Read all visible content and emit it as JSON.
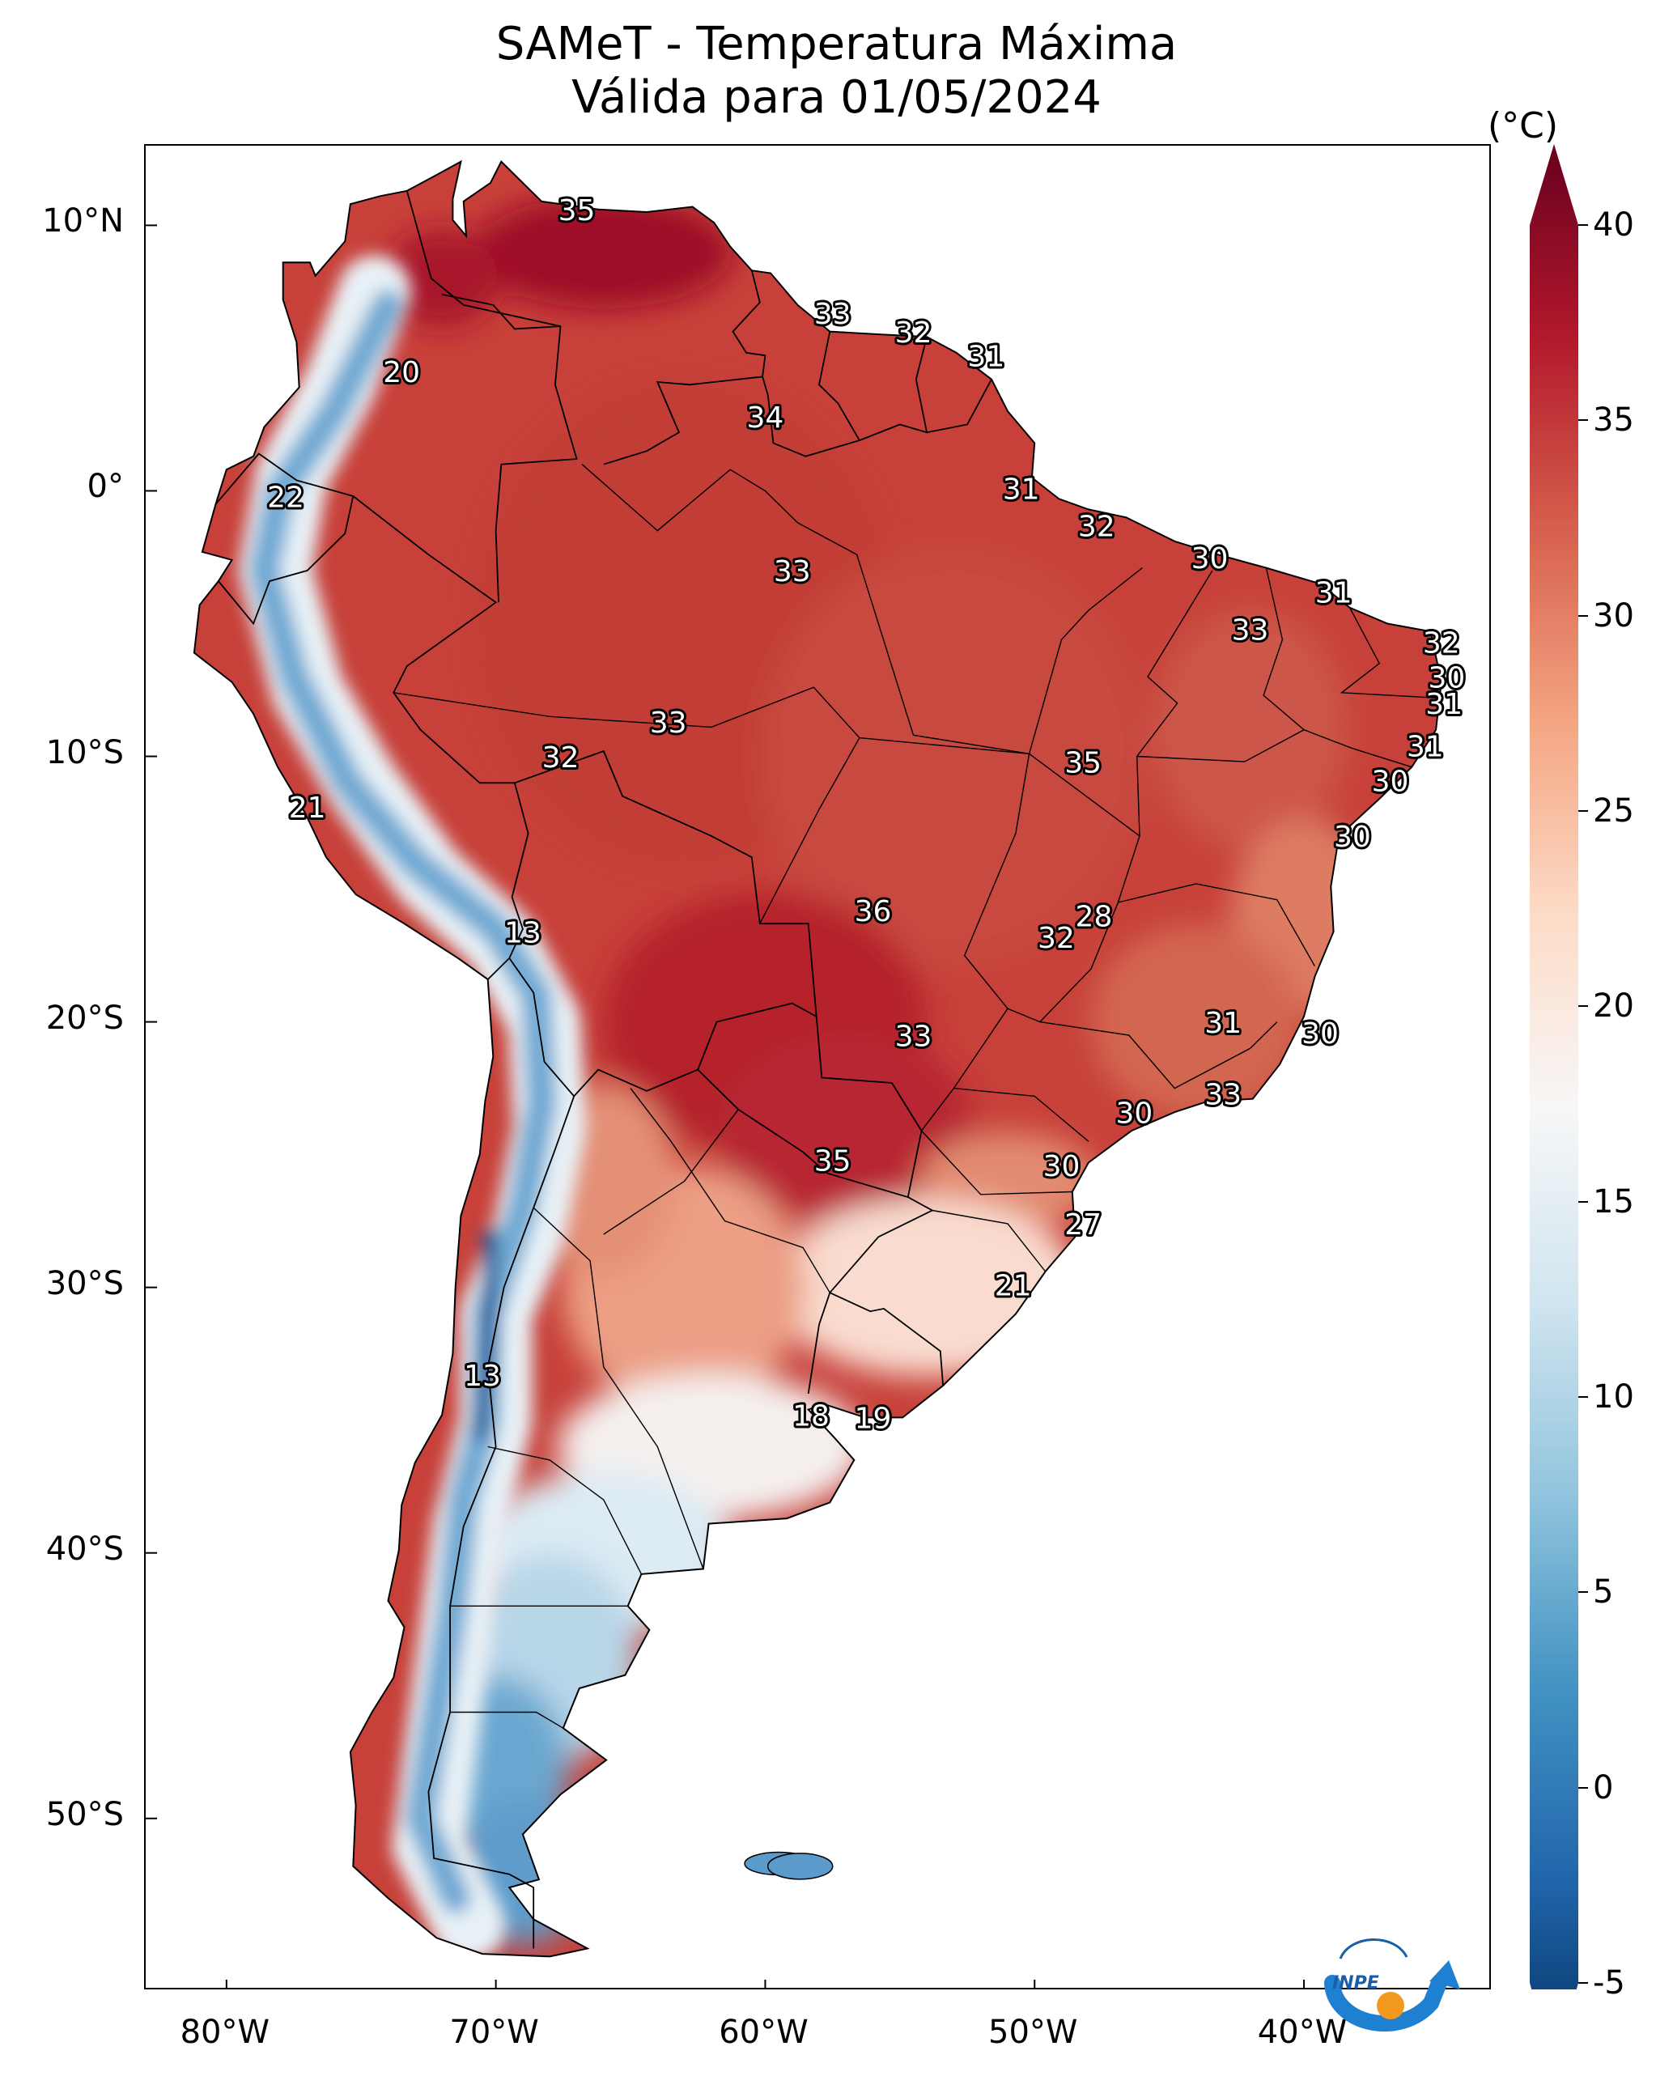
{
  "title": {
    "line1": "SAMeT - Temperatura Máxima",
    "line2": "Válida para 01/05/2024"
  },
  "axes": {
    "lat_labels": [
      "10°N",
      "0°",
      "10°S",
      "20°S",
      "30°S",
      "40°S",
      "50°S"
    ],
    "lon_labels": [
      "80°W",
      "70°W",
      "60°W",
      "50°W",
      "40°W"
    ]
  },
  "colorbar": {
    "unit": "(°C)",
    "ticks": [
      "40",
      "35",
      "30",
      "25",
      "20",
      "15",
      "10",
      "5",
      "0",
      "-5"
    ],
    "range": [
      -5,
      40
    ],
    "extend": "both",
    "colormap": "RdBu_r",
    "colors": [
      "#053061",
      "#2166ac",
      "#4393c3",
      "#92c5de",
      "#d1e5f0",
      "#f7f7f7",
      "#fddbc7",
      "#f4a582",
      "#d6604d",
      "#b2182b",
      "#67001f"
    ]
  },
  "labels": [
    {
      "text": "35",
      "lon": -67.0,
      "lat": 10.5
    },
    {
      "text": "33",
      "lon": -57.5,
      "lat": 6.6
    },
    {
      "text": "32",
      "lon": -54.5,
      "lat": 5.9
    },
    {
      "text": "31",
      "lon": -51.8,
      "lat": 5.0
    },
    {
      "text": "20",
      "lon": -73.5,
      "lat": 4.4
    },
    {
      "text": "34",
      "lon": -60.0,
      "lat": 2.7
    },
    {
      "text": "22",
      "lon": -77.8,
      "lat": -0.3
    },
    {
      "text": "31",
      "lon": -50.5,
      "lat": 0.0
    },
    {
      "text": "32",
      "lon": -47.7,
      "lat": -1.4
    },
    {
      "text": "30",
      "lon": -43.5,
      "lat": -2.6
    },
    {
      "text": "33",
      "lon": -59.0,
      "lat": -3.1
    },
    {
      "text": "31",
      "lon": -38.9,
      "lat": -3.9
    },
    {
      "text": "33",
      "lon": -42.0,
      "lat": -5.3
    },
    {
      "text": "32",
      "lon": -34.9,
      "lat": -5.8
    },
    {
      "text": "30",
      "lon": -34.7,
      "lat": -7.1
    },
    {
      "text": "31",
      "lon": -34.8,
      "lat": -8.1
    },
    {
      "text": "33",
      "lon": -63.6,
      "lat": -8.8
    },
    {
      "text": "31",
      "lon": -35.5,
      "lat": -9.7
    },
    {
      "text": "32",
      "lon": -67.6,
      "lat": -10.1
    },
    {
      "text": "35",
      "lon": -48.2,
      "lat": -10.3
    },
    {
      "text": "30",
      "lon": -36.8,
      "lat": -11.0
    },
    {
      "text": "21",
      "lon": -77.0,
      "lat": -12.0
    },
    {
      "text": "30",
      "lon": -38.2,
      "lat": -13.1
    },
    {
      "text": "36",
      "lon": -56.0,
      "lat": -15.9
    },
    {
      "text": "28",
      "lon": -47.8,
      "lat": -16.1
    },
    {
      "text": "32",
      "lon": -49.2,
      "lat": -16.9
    },
    {
      "text": "13",
      "lon": -69.0,
      "lat": -16.7
    },
    {
      "text": "31",
      "lon": -43.0,
      "lat": -20.1
    },
    {
      "text": "30",
      "lon": -39.4,
      "lat": -20.5
    },
    {
      "text": "33",
      "lon": -54.5,
      "lat": -20.6
    },
    {
      "text": "33",
      "lon": -43.0,
      "lat": -22.8
    },
    {
      "text": "30",
      "lon": -46.3,
      "lat": -23.5
    },
    {
      "text": "35",
      "lon": -57.5,
      "lat": -25.3
    },
    {
      "text": "30",
      "lon": -49.0,
      "lat": -25.5
    },
    {
      "text": "27",
      "lon": -48.2,
      "lat": -27.7
    },
    {
      "text": "21",
      "lon": -50.8,
      "lat": -30.0
    },
    {
      "text": "13",
      "lon": -70.5,
      "lat": -33.4
    },
    {
      "text": "18",
      "lon": -58.3,
      "lat": -34.9
    },
    {
      "text": "19",
      "lon": -56.0,
      "lat": -35.0
    }
  ],
  "logo": {
    "text": "INPE"
  }
}
